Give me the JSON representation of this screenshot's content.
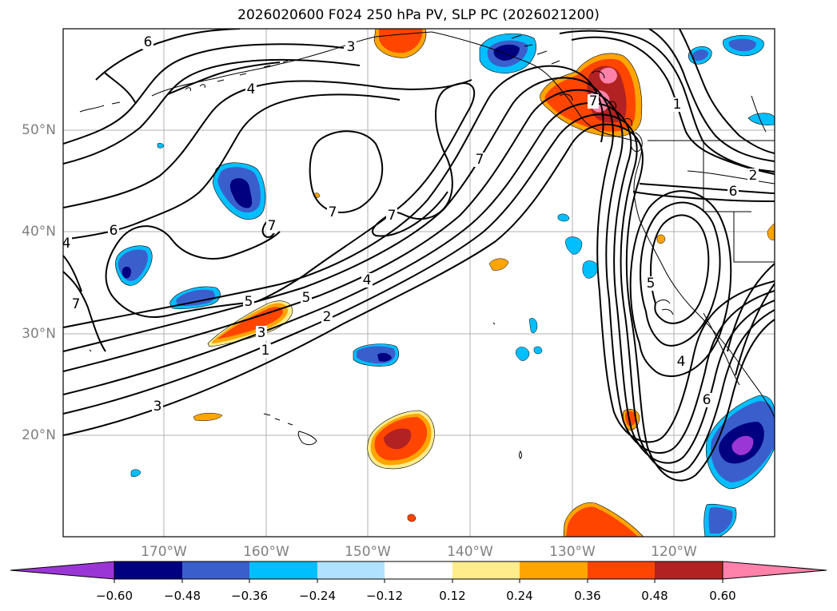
{
  "title": "2026020600 F024 250 hPa PV, SLP PC (2026021200)",
  "lat_labels": [
    "50°N",
    "40°N",
    "30°N",
    "20°N"
  ],
  "lon_labels": [
    "170°W",
    "160°W",
    "150°W",
    "140°W",
    "130°W",
    "120°W"
  ],
  "colorbar": {
    "colors": [
      "#9b36d6",
      "#000080",
      "#3a5fcd",
      "#00bfff",
      "#b0e2ff",
      "#ffffff",
      "#ffec8b",
      "#ffa500",
      "#ff4500",
      "#b22222",
      "#ff82ab"
    ],
    "tick_labels": [
      "−0.60",
      "−0.48",
      "−0.36",
      "−0.24",
      "−0.12",
      "0.12",
      "0.24",
      "0.36",
      "0.48",
      "0.60"
    ]
  },
  "contour_labels": [
    {
      "id": "c6-nw",
      "text": "6"
    },
    {
      "id": "c3-north",
      "text": "3"
    },
    {
      "id": "c4-north",
      "text": "4"
    },
    {
      "id": "c7-a",
      "text": "7"
    },
    {
      "id": "c7-b",
      "text": "7"
    },
    {
      "id": "c7-c",
      "text": "7"
    },
    {
      "id": "c7-d",
      "text": "7"
    },
    {
      "id": "c5-west",
      "text": "5"
    },
    {
      "id": "c6-west",
      "text": "6"
    },
    {
      "id": "c4-west",
      "text": "4"
    },
    {
      "id": "c7-e",
      "text": "7"
    },
    {
      "id": "c6-jet",
      "text": "6"
    },
    {
      "id": "c5-jet",
      "text": "5"
    },
    {
      "id": "c4-jet",
      "text": "4"
    },
    {
      "id": "c3-jet",
      "text": "3"
    },
    {
      "id": "c2-jet",
      "text": "2"
    },
    {
      "id": "c1-jet",
      "text": "1"
    },
    {
      "id": "c3-ne",
      "text": "3"
    },
    {
      "id": "c1-east",
      "text": "1"
    },
    {
      "id": "c2-east",
      "text": "2"
    },
    {
      "id": "c6-east",
      "text": "6"
    },
    {
      "id": "c5-east",
      "text": "5"
    },
    {
      "id": "c4-east",
      "text": "4"
    },
    {
      "id": "c7-alaska",
      "text": "7"
    }
  ]
}
